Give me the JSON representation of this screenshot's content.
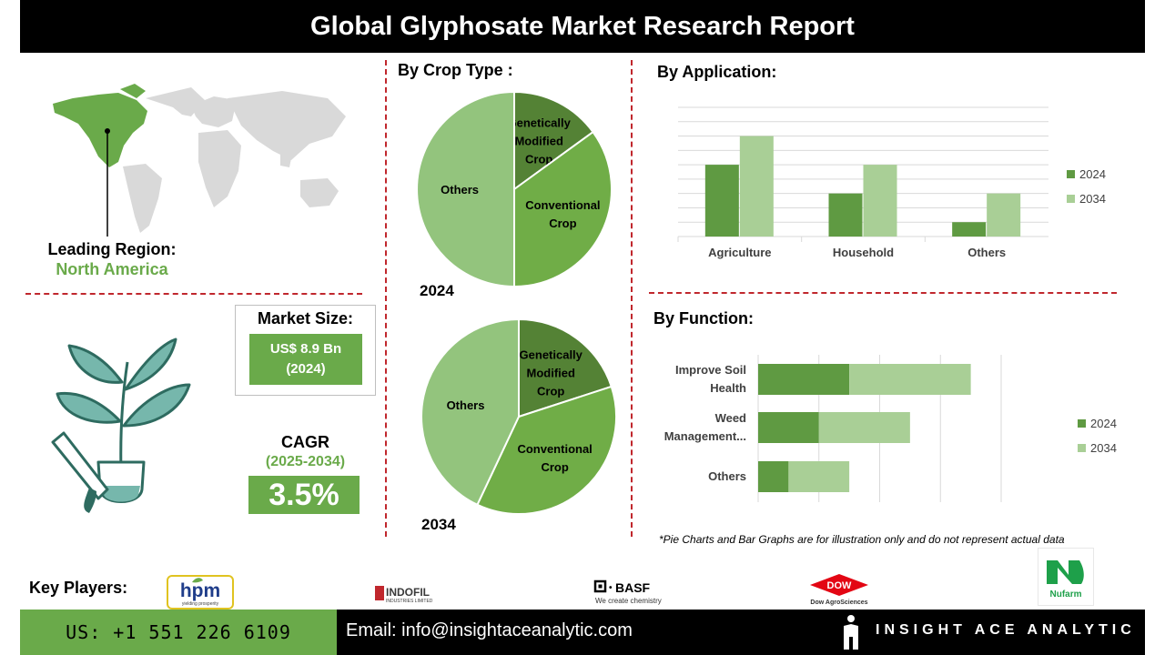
{
  "header": {
    "title": "Global Glyphosate Market Research Report"
  },
  "leading_region": {
    "label": "Leading Region:",
    "value": "North America"
  },
  "market_size": {
    "label": "Market Size:",
    "value": "US$ 8.9 Bn",
    "year": "(2024)"
  },
  "cagr": {
    "label": "CAGR",
    "period": "(2025-2034)",
    "value": "3.5%"
  },
  "crop_type": {
    "title": "By Crop Type  :"
  },
  "application": {
    "title": "By Application:"
  },
  "function": {
    "title": "By Function:"
  },
  "note": "*Pie Charts and Bar Graphs are for illustration only and do not represent actual data",
  "key_players": {
    "label": "Key Players:",
    "logos": [
      {
        "name": "hpm",
        "tagline": "yielding prosperity"
      },
      {
        "name": "INDOFIL",
        "tagline": "INDUSTRIES LIMITED"
      },
      {
        "name": "BASF",
        "tagline": "We create chemistry"
      },
      {
        "name": "DOW",
        "tagline": "Dow AgroSciences"
      },
      {
        "name": "Nufarm"
      }
    ]
  },
  "footer": {
    "phone": "US: +1 551 226 6109",
    "email": "Email: info@insightaceanalytic.com",
    "brand": "INSIGHT ACE ANALYTIC"
  },
  "colors": {
    "dark_green": "#5f9a42",
    "mid_green": "#6aaa4a",
    "light_green": "#a9cf96",
    "pie_dark": "#548235",
    "pie_mid": "#70ad47",
    "pie_light": "#93c47d",
    "red_dash": "#c0272d"
  },
  "chart_data": [
    {
      "type": "pie",
      "year": "2024",
      "slices": [
        {
          "label": "Genetically Modified Crop",
          "value": 15
        },
        {
          "label": "Conventional Crop",
          "value": 35
        },
        {
          "label": "Others",
          "value": 50
        }
      ]
    },
    {
      "type": "pie",
      "year": "2034",
      "slices": [
        {
          "label": "Genetically Modified Crop",
          "value": 20
        },
        {
          "label": "Conventional Crop",
          "value": 37
        },
        {
          "label": "Others",
          "value": 43
        }
      ]
    },
    {
      "type": "bar",
      "categories": [
        "Agriculture",
        "Household",
        "Others"
      ],
      "series": [
        {
          "name": "2024",
          "values": [
            5,
            3,
            1
          ]
        },
        {
          "name": "2034",
          "values": [
            7,
            5,
            3
          ]
        }
      ],
      "ylim": [
        0,
        9
      ],
      "grid": true,
      "legend": "right"
    },
    {
      "type": "bar",
      "orientation": "horizontal",
      "stacked": true,
      "categories": [
        "Improve Soil Health",
        "Weed Management...",
        "Others"
      ],
      "series": [
        {
          "name": "2024",
          "values": [
            3,
            2,
            1
          ]
        },
        {
          "name": "2034",
          "values": [
            4,
            3,
            2
          ]
        }
      ],
      "xlim": [
        0,
        8
      ],
      "grid": true,
      "legend": "right"
    }
  ]
}
